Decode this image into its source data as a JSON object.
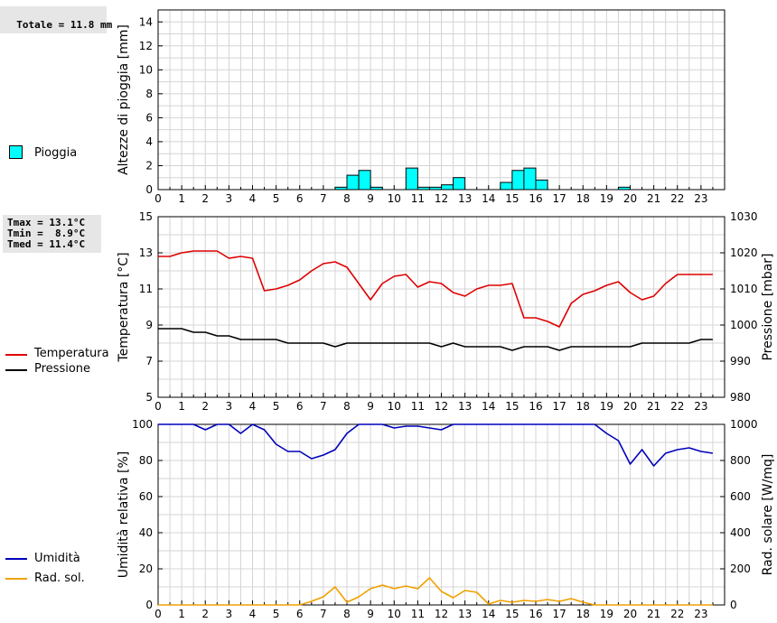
{
  "summary": {
    "total_rain": "Totale = 11.8 mm"
  },
  "temp_stats": {
    "tmax": "Tmax = 13.1°C",
    "tmin": "Tmin =  8.9°C",
    "tmed": "Tmed = 11.4°C"
  },
  "legend": {
    "rain": "Pioggia",
    "temperature": "Temperatura",
    "pressure": "Pressione",
    "humidity": "Umidità",
    "radiation": "Rad. sol."
  },
  "colors": {
    "rain_fill": "#00ffff",
    "temperature": "#dd0000",
    "pressure": "#000000",
    "humidity": "#0000bb",
    "radiation": "#f0a000",
    "grid": "#d4d4d4"
  },
  "chart_data": [
    {
      "type": "bar",
      "title": "",
      "xlabel": "",
      "ylabel": "Altezze di pioggia [mm]",
      "xlim": [
        0,
        24
      ],
      "ylim": [
        0,
        15
      ],
      "yticks": [
        0,
        2,
        4,
        6,
        8,
        10,
        12,
        14
      ],
      "xticks": [
        "0",
        "1",
        "2",
        "3",
        "4",
        "5",
        "6",
        "7",
        "8",
        "9",
        "10",
        "11",
        "12",
        "13",
        "14",
        "15",
        "16",
        "17",
        "18",
        "19",
        "20",
        "21",
        "22",
        "23"
      ],
      "series": [
        {
          "name": "Pioggia",
          "x": [
            7.75,
            8.25,
            8.75,
            9.25,
            10.75,
            11.25,
            11.75,
            12.25,
            12.75,
            14.75,
            15.25,
            15.75,
            16.25,
            19.75
          ],
          "values": [
            0.2,
            1.2,
            1.6,
            0.2,
            1.8,
            0.2,
            0.2,
            0.4,
            1.0,
            0.6,
            1.6,
            1.8,
            0.8,
            0.2
          ],
          "width": 0.5
        }
      ]
    },
    {
      "type": "line",
      "title": "",
      "ylabel": "Temperatura [°C]",
      "y2label": "Pressione [mbar]",
      "xlim": [
        0,
        24
      ],
      "ylim": [
        5,
        15
      ],
      "y2lim": [
        980,
        1030
      ],
      "yticks": [
        5,
        7,
        9,
        11,
        13,
        15
      ],
      "y2ticks": [
        980,
        990,
        1000,
        1010,
        1020,
        1030
      ],
      "xticks": [
        "0",
        "1",
        "2",
        "3",
        "4",
        "5",
        "6",
        "7",
        "8",
        "9",
        "10",
        "11",
        "12",
        "13",
        "14",
        "15",
        "16",
        "17",
        "18",
        "19",
        "20",
        "21",
        "22",
        "23"
      ],
      "series": [
        {
          "name": "Temperatura",
          "axis": "y1",
          "x": [
            0,
            0.5,
            1,
            1.5,
            2,
            2.5,
            3,
            3.5,
            4,
            4.5,
            5,
            5.5,
            6,
            6.5,
            7,
            7.5,
            8,
            8.5,
            9,
            9.5,
            10,
            10.5,
            11,
            11.5,
            12,
            12.5,
            13,
            13.5,
            14,
            14.5,
            15,
            15.5,
            16,
            16.5,
            17,
            17.5,
            18,
            18.5,
            19,
            19.5,
            20,
            20.5,
            21,
            21.5,
            22,
            22.5,
            23,
            23.5
          ],
          "values": [
            12.8,
            12.8,
            13.0,
            13.1,
            13.1,
            13.1,
            12.7,
            12.8,
            12.7,
            10.9,
            11.0,
            11.2,
            11.5,
            12.0,
            12.4,
            12.5,
            12.2,
            11.3,
            10.4,
            11.3,
            11.7,
            11.8,
            11.1,
            11.4,
            11.3,
            10.8,
            10.6,
            11.0,
            11.2,
            11.2,
            11.3,
            9.4,
            9.4,
            9.2,
            8.9,
            10.2,
            10.7,
            10.9,
            11.2,
            11.4,
            10.8,
            10.4,
            10.6,
            11.3,
            11.8,
            11.8,
            11.8,
            11.8
          ]
        },
        {
          "name": "Pressione",
          "axis": "y2",
          "x": [
            0,
            0.5,
            1,
            1.5,
            2,
            2.5,
            3,
            3.5,
            4,
            4.5,
            5,
            5.5,
            6,
            6.5,
            7,
            7.5,
            8,
            8.5,
            9,
            9.5,
            10,
            10.5,
            11,
            11.5,
            12,
            12.5,
            13,
            13.5,
            14,
            14.5,
            15,
            15.5,
            16,
            16.5,
            17,
            17.5,
            18,
            18.5,
            19,
            19.5,
            20,
            20.5,
            21,
            21.5,
            22,
            22.5,
            23,
            23.5
          ],
          "values": [
            999,
            999,
            999,
            998,
            998,
            997,
            997,
            996,
            996,
            996,
            996,
            995,
            995,
            995,
            995,
            994,
            995,
            995,
            995,
            995,
            995,
            995,
            995,
            995,
            994,
            995,
            994,
            994,
            994,
            994,
            993,
            994,
            994,
            994,
            993,
            994,
            994,
            994,
            994,
            994,
            994,
            995,
            995,
            995,
            995,
            995,
            996,
            996
          ]
        }
      ]
    },
    {
      "type": "line",
      "title": "",
      "ylabel": "Umidità relativa [%]",
      "y2label": "Rad. solare [W/mq]",
      "xlim": [
        0,
        24
      ],
      "ylim": [
        0,
        100
      ],
      "y2lim": [
        0,
        1000
      ],
      "yticks": [
        0,
        20,
        40,
        60,
        80,
        100
      ],
      "y2ticks": [
        0,
        200,
        400,
        600,
        800,
        1000
      ],
      "xticks": [
        "0",
        "1",
        "2",
        "3",
        "4",
        "5",
        "6",
        "7",
        "8",
        "9",
        "10",
        "11",
        "12",
        "13",
        "14",
        "15",
        "16",
        "17",
        "18",
        "19",
        "20",
        "21",
        "22",
        "23"
      ],
      "series": [
        {
          "name": "Umidità",
          "axis": "y1",
          "x": [
            0,
            0.5,
            1,
            1.5,
            2,
            2.5,
            3,
            3.5,
            4,
            4.5,
            5,
            5.5,
            6,
            6.5,
            7,
            7.5,
            8,
            8.5,
            9,
            9.5,
            10,
            10.5,
            11,
            11.5,
            12,
            12.5,
            13,
            13.5,
            14,
            14.5,
            15,
            15.5,
            16,
            16.5,
            17,
            17.5,
            18,
            18.5,
            19,
            19.5,
            20,
            20.5,
            21,
            21.5,
            22,
            22.5,
            23,
            23.5
          ],
          "values": [
            100,
            100,
            100,
            100,
            97,
            100,
            100,
            95,
            100,
            97,
            89,
            85,
            85,
            81,
            83,
            86,
            95,
            100,
            100,
            100,
            98,
            99,
            99,
            98,
            97,
            100,
            100,
            100,
            100,
            100,
            100,
            100,
            100,
            100,
            100,
            100,
            100,
            100,
            95,
            91,
            78,
            86,
            77,
            84,
            86,
            87,
            85,
            84
          ]
        },
        {
          "name": "Rad. sol.",
          "axis": "y2",
          "x": [
            0,
            0.5,
            1,
            1.5,
            2,
            2.5,
            3,
            3.5,
            4,
            4.5,
            5,
            5.5,
            6,
            6.5,
            7,
            7.5,
            8,
            8.5,
            9,
            9.5,
            10,
            10.5,
            11,
            11.5,
            12,
            12.5,
            13,
            13.5,
            14,
            14.5,
            15,
            15.5,
            16,
            16.5,
            17,
            17.5,
            18,
            18.5,
            19,
            19.5,
            20,
            20.5,
            21,
            21.5,
            22,
            22.5,
            23,
            23.5
          ],
          "values": [
            0,
            0,
            0,
            0,
            0,
            0,
            0,
            0,
            0,
            0,
            0,
            0,
            0,
            20,
            45,
            100,
            15,
            45,
            90,
            110,
            90,
            105,
            90,
            150,
            75,
            40,
            80,
            70,
            5,
            25,
            15,
            25,
            20,
            30,
            20,
            35,
            15,
            0,
            0,
            0,
            0,
            0,
            0,
            0,
            0,
            0,
            0,
            0
          ]
        }
      ]
    }
  ]
}
